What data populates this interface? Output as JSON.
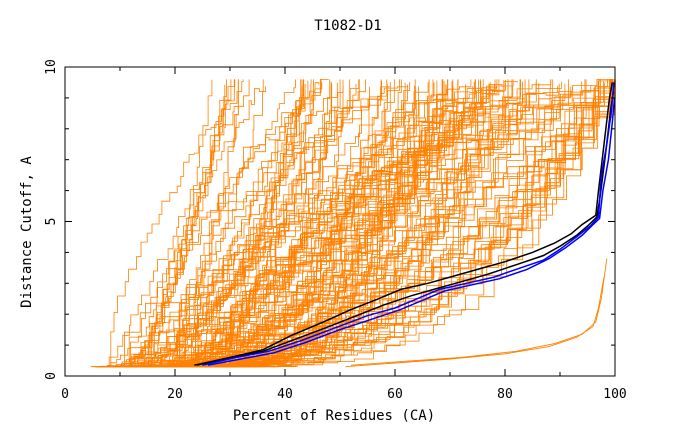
{
  "chart_data": {
    "type": "line",
    "title": "T1082-D1",
    "xlabel": "Percent of Residues (CA)",
    "ylabel": "Distance Cutoff, A",
    "xlim": [
      0,
      100
    ],
    "ylim": [
      0,
      10
    ],
    "x_ticks": [
      "0",
      "20",
      "40",
      "60",
      "80",
      "100"
    ],
    "y_ticks": [
      "0",
      "5",
      "10"
    ],
    "grid": false,
    "colors": {
      "background_models": "#ff8000",
      "highlight_a": "#000000",
      "highlight_b": "#0000ff",
      "axis": "#000000"
    },
    "background_model_count": 150,
    "highlight_series": [
      {
        "color": "#000000",
        "x": [
          23.5,
          30,
          36,
          41,
          47,
          52,
          57,
          61,
          66,
          70,
          75,
          80,
          85,
          89,
          92,
          94,
          96.5,
          97,
          98,
          99,
          99.5
        ],
        "y": [
          0.35,
          0.6,
          0.85,
          1.3,
          1.75,
          2.15,
          2.5,
          2.8,
          3.0,
          3.2,
          3.45,
          3.7,
          4.0,
          4.3,
          4.6,
          4.9,
          5.2,
          6.0,
          7.5,
          9.0,
          9.5
        ]
      },
      {
        "color": "#000000",
        "x": [
          24,
          30,
          36,
          42,
          48,
          53,
          58,
          63,
          68,
          72,
          77,
          82,
          87,
          90,
          93,
          95,
          96.7,
          97.3,
          98.3,
          99.2,
          99.7
        ],
        "y": [
          0.35,
          0.6,
          0.8,
          1.2,
          1.6,
          1.95,
          2.3,
          2.6,
          2.85,
          3.05,
          3.3,
          3.6,
          3.9,
          4.2,
          4.55,
          4.85,
          5.15,
          5.8,
          7.2,
          8.6,
          9.2
        ]
      },
      {
        "color": "#0000ff",
        "x": [
          25,
          31,
          37,
          43,
          49,
          55,
          60,
          64,
          68,
          73,
          78,
          82,
          87,
          90,
          93,
          95.5,
          97,
          97.5,
          98.5,
          99.3,
          99.8
        ],
        "y": [
          0.35,
          0.6,
          0.8,
          1.15,
          1.55,
          1.95,
          2.2,
          2.5,
          2.8,
          3.0,
          3.2,
          3.45,
          3.75,
          4.1,
          4.5,
          4.85,
          5.15,
          6.5,
          7.5,
          8.5,
          9.5
        ]
      },
      {
        "color": "#0000ff",
        "x": [
          26,
          32,
          38,
          44,
          50,
          56,
          61,
          65,
          69,
          74,
          79,
          84,
          88,
          91,
          94,
          96,
          97.2,
          97.8,
          98.8,
          99.5,
          99.9
        ],
        "y": [
          0.35,
          0.55,
          0.75,
          1.1,
          1.5,
          1.85,
          2.15,
          2.45,
          2.75,
          2.95,
          3.15,
          3.45,
          3.8,
          4.15,
          4.55,
          4.9,
          5.1,
          6.0,
          7.0,
          8.2,
          9.0
        ]
      }
    ],
    "outlier_series": [
      {
        "color": "#ff8000",
        "x": [
          51,
          60,
          70,
          80,
          88,
          93,
          96,
          97,
          98
        ],
        "y": [
          0.3,
          0.42,
          0.55,
          0.72,
          0.95,
          1.25,
          1.6,
          2.2,
          3.2
        ]
      },
      {
        "color": "#ff8000",
        "x": [
          52,
          62,
          72,
          82,
          89,
          94,
          96.5,
          97.5,
          98.5
        ],
        "y": [
          0.35,
          0.48,
          0.6,
          0.8,
          1.05,
          1.35,
          1.75,
          2.5,
          3.8
        ]
      }
    ]
  }
}
